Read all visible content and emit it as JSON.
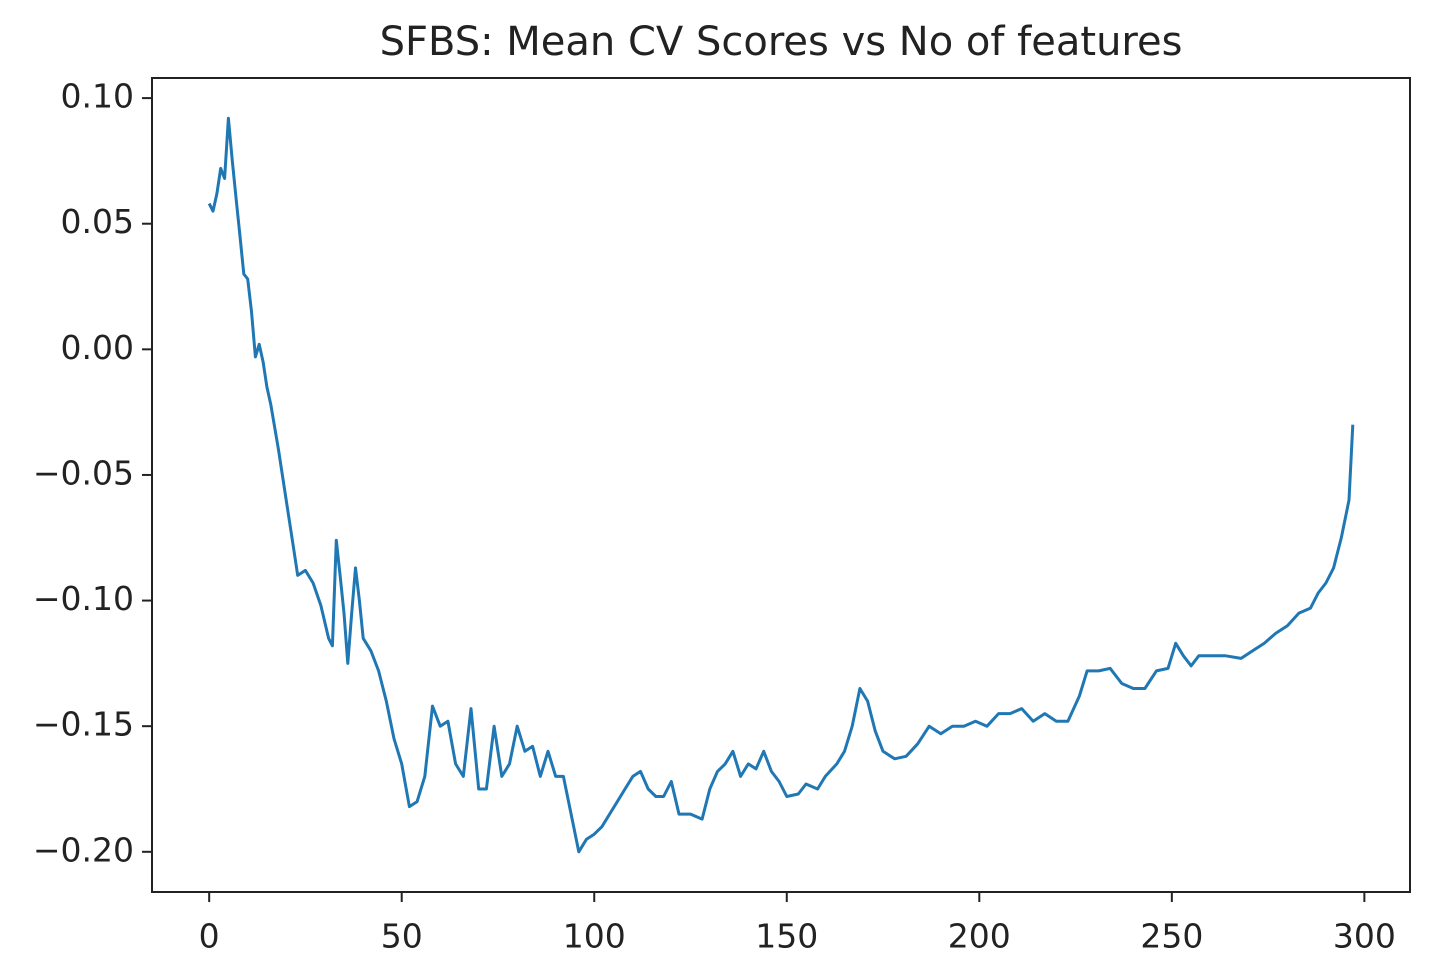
{
  "chart_data": {
    "type": "line",
    "title": "SFBS: Mean CV Scores vs No of features",
    "x": [
      0,
      1,
      2,
      3,
      4,
      5,
      6,
      7,
      8,
      9,
      10,
      11,
      12,
      13,
      14,
      15,
      16,
      18,
      20,
      22,
      23,
      25,
      27,
      29,
      31,
      32,
      33,
      34,
      35,
      36,
      37,
      38,
      39,
      40,
      42,
      44,
      46,
      48,
      50,
      52,
      54,
      56,
      58,
      60,
      62,
      64,
      66,
      68,
      70,
      72,
      74,
      76,
      78,
      80,
      82,
      84,
      86,
      88,
      90,
      92,
      94,
      96,
      98,
      100,
      102,
      104,
      106,
      108,
      110,
      112,
      114,
      116,
      118,
      120,
      122,
      125,
      128,
      130,
      132,
      134,
      136,
      138,
      140,
      142,
      144,
      146,
      148,
      150,
      153,
      155,
      158,
      160,
      163,
      165,
      167,
      169,
      171,
      173,
      175,
      178,
      181,
      184,
      187,
      190,
      193,
      196,
      199,
      202,
      205,
      208,
      211,
      214,
      217,
      220,
      223,
      226,
      228,
      231,
      234,
      237,
      240,
      243,
      246,
      249,
      251,
      253,
      255,
      257,
      260,
      264,
      268,
      271,
      274,
      277,
      280,
      283,
      286,
      288,
      290,
      292,
      294,
      296,
      297
    ],
    "series": [
      {
        "name": "Mean CV Score",
        "color": "#1f77b4",
        "values": [
          0.058,
          0.055,
          0.062,
          0.072,
          0.068,
          0.092,
          0.075,
          0.06,
          0.045,
          0.03,
          0.028,
          0.015,
          -0.003,
          0.002,
          -0.005,
          -0.015,
          -0.022,
          -0.04,
          -0.06,
          -0.08,
          -0.09,
          -0.088,
          -0.093,
          -0.102,
          -0.115,
          -0.118,
          -0.076,
          -0.09,
          -0.105,
          -0.125,
          -0.105,
          -0.087,
          -0.1,
          -0.115,
          -0.12,
          -0.128,
          -0.14,
          -0.155,
          -0.165,
          -0.182,
          -0.18,
          -0.17,
          -0.142,
          -0.15,
          -0.148,
          -0.165,
          -0.17,
          -0.143,
          -0.175,
          -0.175,
          -0.15,
          -0.17,
          -0.165,
          -0.15,
          -0.16,
          -0.158,
          -0.17,
          -0.16,
          -0.17,
          -0.17,
          -0.185,
          -0.2,
          -0.195,
          -0.193,
          -0.19,
          -0.185,
          -0.18,
          -0.175,
          -0.17,
          -0.168,
          -0.175,
          -0.178,
          -0.178,
          -0.172,
          -0.185,
          -0.185,
          -0.187,
          -0.175,
          -0.168,
          -0.165,
          -0.16,
          -0.17,
          -0.165,
          -0.167,
          -0.16,
          -0.168,
          -0.172,
          -0.178,
          -0.177,
          -0.173,
          -0.175,
          -0.17,
          -0.165,
          -0.16,
          -0.15,
          -0.135,
          -0.14,
          -0.152,
          -0.16,
          -0.163,
          -0.162,
          -0.157,
          -0.15,
          -0.153,
          -0.15,
          -0.15,
          -0.148,
          -0.15,
          -0.145,
          -0.145,
          -0.143,
          -0.148,
          -0.145,
          -0.148,
          -0.148,
          -0.138,
          -0.128,
          -0.128,
          -0.127,
          -0.133,
          -0.135,
          -0.135,
          -0.128,
          -0.127,
          -0.117,
          -0.122,
          -0.126,
          -0.122,
          -0.122,
          -0.122,
          -0.123,
          -0.12,
          -0.117,
          -0.113,
          -0.11,
          -0.105,
          -0.103,
          -0.097,
          -0.093,
          -0.087,
          -0.075,
          -0.06,
          -0.03
        ]
      }
    ],
    "xlim": [
      -14.85,
      311.85
    ],
    "ylim": [
      -0.216,
      0.108
    ],
    "xticks": [
      0,
      50,
      100,
      150,
      200,
      250,
      300
    ],
    "yticks": [
      {
        "value": 0.1,
        "label": "0.10"
      },
      {
        "value": 0.05,
        "label": "0.05"
      },
      {
        "value": 0,
        "label": "0.00"
      },
      {
        "value": -0.05,
        "label": "−0.05"
      },
      {
        "value": -0.1,
        "label": "−0.10"
      },
      {
        "value": -0.15,
        "label": "−0.15"
      },
      {
        "value": -0.2,
        "label": "−0.20"
      }
    ],
    "grid": false
  }
}
